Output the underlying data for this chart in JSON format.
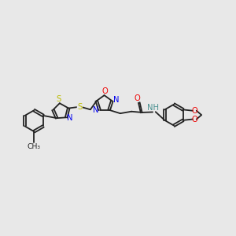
{
  "background_color": "#e8e8e8",
  "bond_color": "#222222",
  "bond_width": 1.3,
  "figsize": [
    3.0,
    3.0
  ],
  "dpi": 100,
  "colors": {
    "N": "#0000ee",
    "O": "#ee0000",
    "S": "#bbbb00",
    "C": "#222222",
    "H": "#4a9090"
  },
  "font_size": 7.2,
  "xlim": [
    0,
    12
  ],
  "ylim": [
    0,
    12
  ]
}
